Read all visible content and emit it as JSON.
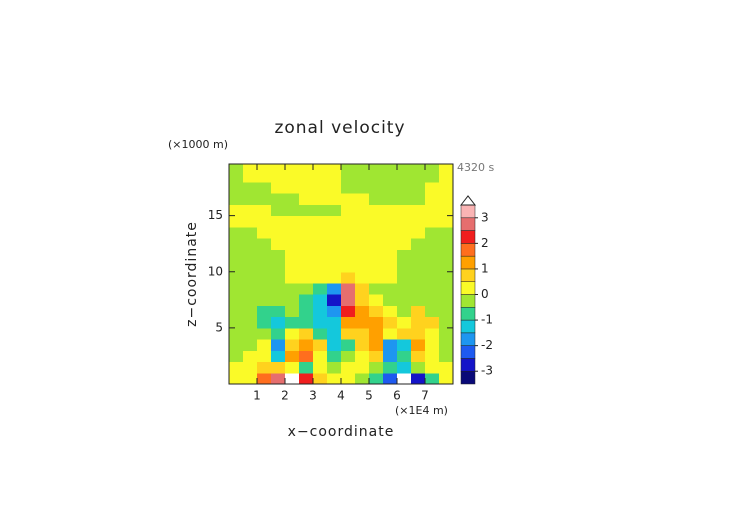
{
  "chart_data": {
    "type": "contour",
    "title": "zonal velocity",
    "y_unit": "(×1000 m)",
    "x_unit": "(×1E4 m)",
    "time_label": "4320 s",
    "xlabel": "x−coordinate",
    "ylabel": "z−coordinate",
    "xlim": [
      0,
      8
    ],
    "ylim": [
      0,
      19.6
    ],
    "xticks": [
      1,
      2,
      3,
      4,
      5,
      6,
      7
    ],
    "yticks": [
      5,
      10,
      15
    ],
    "xbins": [
      0,
      0.5,
      1,
      1.5,
      2,
      2.5,
      3,
      3.5,
      4,
      4.5,
      5,
      5.5,
      6,
      6.5,
      7,
      7.5,
      8
    ],
    "zbins": [
      0,
      1,
      2,
      3,
      4,
      5,
      6,
      7,
      8,
      9,
      10,
      11,
      12,
      13,
      14,
      15,
      16,
      17,
      18,
      19,
      19.6
    ],
    "z": [
      [
        0.2,
        0.2,
        1.7,
        2.7,
        3.7,
        2.2,
        0.7,
        0.2,
        0.2,
        -0.2,
        -0.7,
        -2.2,
        -3.7,
        -2.7,
        -0.7,
        0.2
      ],
      [
        0.2,
        0.2,
        0.7,
        0.7,
        0.2,
        -0.7,
        0.2,
        -0.2,
        0.2,
        0.2,
        -0.2,
        -0.7,
        -1.2,
        -0.2,
        0.2,
        0.2
      ],
      [
        -0.2,
        0.2,
        0.2,
        -1.2,
        1.2,
        1.7,
        0.2,
        -0.7,
        -0.2,
        0.2,
        0.7,
        -1.7,
        -0.7,
        0.7,
        0.2,
        -0.2
      ],
      [
        -0.2,
        -0.2,
        0.2,
        -1.7,
        0.7,
        1.2,
        0.7,
        -1.2,
        -0.7,
        0.7,
        1.2,
        -1.7,
        -1.2,
        1.2,
        0.2,
        -0.2
      ],
      [
        -0.2,
        -0.2,
        -0.2,
        -0.7,
        0.2,
        0.7,
        -0.7,
        -1.2,
        0.7,
        0.7,
        1.2,
        0.2,
        0.7,
        0.7,
        0.2,
        -0.2
      ],
      [
        -0.2,
        -0.2,
        -0.7,
        -1.2,
        -0.7,
        -0.7,
        -1.2,
        -1.2,
        1.2,
        1.2,
        1.2,
        0.7,
        0.2,
        0.7,
        0.7,
        -0.2
      ],
      [
        -0.2,
        -0.2,
        -0.7,
        -0.7,
        -0.2,
        -0.7,
        -1.2,
        -1.8,
        2.2,
        1.2,
        0.7,
        0.2,
        -0.2,
        0.7,
        -0.2,
        -0.2
      ],
      [
        -0.2,
        -0.2,
        -0.2,
        -0.2,
        -0.2,
        -0.6,
        -1.2,
        -2.7,
        2.7,
        0.8,
        0.2,
        -0.2,
        -0.2,
        -0.2,
        -0.2,
        -0.2
      ],
      [
        -0.2,
        -0.2,
        -0.2,
        -0.2,
        -0.2,
        -0.2,
        -0.6,
        -2,
        2.5,
        0.6,
        -0.2,
        -0.2,
        -0.2,
        -0.2,
        -0.2,
        -0.2
      ],
      [
        -0.2,
        -0.2,
        -0.2,
        -0.2,
        0.2,
        0.2,
        0.2,
        0.4,
        0.6,
        0.2,
        0.2,
        0.2,
        -0.2,
        -0.2,
        -0.2,
        -0.2
      ],
      [
        -0.2,
        -0.2,
        -0.2,
        -0.2,
        0.2,
        0.2,
        0.2,
        0.2,
        0.2,
        0.2,
        0.2,
        0.2,
        -0.2,
        -0.2,
        -0.2,
        -0.2
      ],
      [
        -0.2,
        -0.2,
        -0.2,
        -0.2,
        0.2,
        0.2,
        0.2,
        0.2,
        0.2,
        0.2,
        0.2,
        0.2,
        -0.2,
        -0.2,
        -0.2,
        -0.2
      ],
      [
        -0.2,
        -0.2,
        -0.2,
        0.2,
        0.2,
        0.2,
        0.2,
        0.2,
        0.2,
        0.2,
        0.2,
        0.2,
        0.2,
        -0.2,
        -0.2,
        -0.2
      ],
      [
        -0.2,
        -0.2,
        0.2,
        0.2,
        0.2,
        0.2,
        0.2,
        0.2,
        0.2,
        0.2,
        0.2,
        0.2,
        0.2,
        0.2,
        -0.2,
        -0.2
      ],
      [
        0.2,
        0.2,
        0.2,
        0.2,
        0.2,
        0.2,
        0.2,
        0.2,
        0.2,
        0.2,
        0.2,
        0.2,
        0.2,
        0.2,
        0.2,
        0.2
      ],
      [
        0.2,
        0.2,
        0.2,
        -0.2,
        -0.2,
        -0.2,
        -0.2,
        -0.2,
        0.2,
        0.2,
        0.2,
        0.2,
        0.2,
        0.2,
        0.2,
        0.2
      ],
      [
        -0.2,
        -0.2,
        -0.2,
        -0.2,
        -0.2,
        0.2,
        0.2,
        0.2,
        0.2,
        0.2,
        -0.2,
        -0.2,
        -0.2,
        -0.2,
        0.2,
        0.2
      ],
      [
        -0.2,
        -0.2,
        -0.2,
        0.2,
        0.2,
        0.2,
        0.2,
        0.2,
        -0.2,
        -0.2,
        -0.2,
        -0.2,
        -0.2,
        -0.2,
        0.2,
        0.2
      ],
      [
        -0.2,
        0.2,
        0.2,
        0.2,
        0.2,
        0.2,
        0.2,
        0.2,
        -0.2,
        -0.2,
        -0.2,
        -0.2,
        -0.2,
        -0.2,
        -0.2,
        0.2
      ],
      [
        -0.2,
        0.2,
        0.2,
        0.2,
        0.2,
        0.2,
        0.2,
        0.2,
        -0.2,
        -0.2,
        -0.2,
        -0.2,
        -0.2,
        -0.2,
        -0.2,
        0.2
      ]
    ],
    "levels": [
      -3.5,
      -3,
      -2.5,
      -2,
      -1.5,
      -1,
      -0.5,
      0,
      0.5,
      1,
      1.5,
      2,
      2.5,
      3,
      3.5
    ],
    "colors": [
      "#0a0a78",
      "#1414c8",
      "#1e5af0",
      "#1e96f0",
      "#14c8dc",
      "#32d28c",
      "#a0e632",
      "#fafa28",
      "#ffd21e",
      "#ffa000",
      "#ff6e1e",
      "#f01e1e",
      "#e66e6e",
      "#fab4b4"
    ],
    "over_color": "#ffffff",
    "cbar_ticks": [
      -3,
      -2,
      -1,
      0,
      1,
      2,
      3
    ]
  }
}
